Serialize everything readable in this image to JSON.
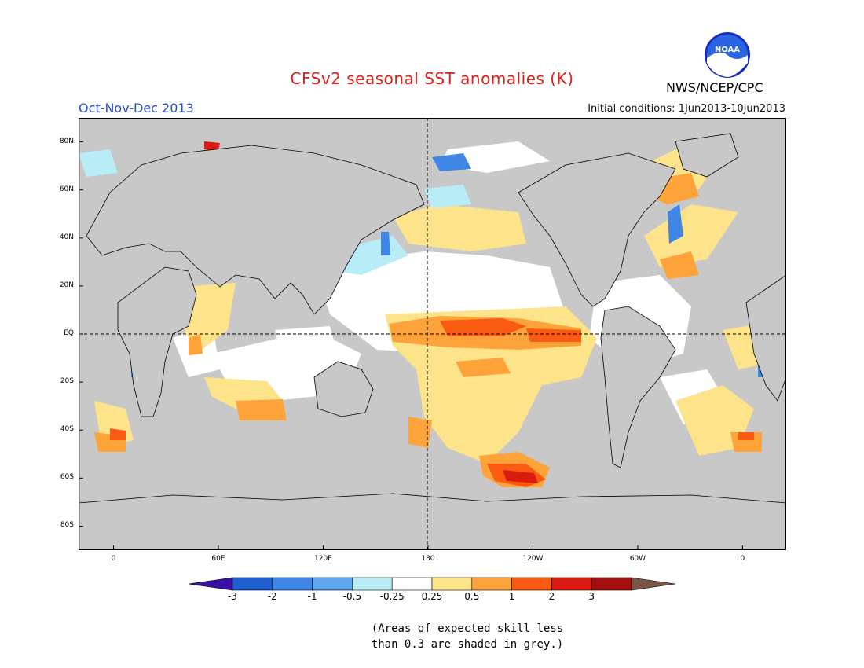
{
  "title": "CFSv2 seasonal SST anomalies (K)",
  "season": "Oct-Nov-Dec 2013",
  "initial_conditions": "Initial conditions: 1Jun2013-10Jun2013",
  "organization": "NWS/NCEP/CPC",
  "logo_text": "NOAA",
  "colors": {
    "title": "#e0201b",
    "season": "#2a4fd8",
    "land": "#c8c8c8",
    "ocean_neutral": "#ffffff"
  },
  "map": {
    "lat_labels": [
      "80N",
      "60N",
      "40N",
      "20N",
      "EQ",
      "20S",
      "40S",
      "60S",
      "80S"
    ],
    "lat_values": [
      80,
      60,
      40,
      20,
      0,
      -20,
      -40,
      -60,
      -80
    ],
    "lon_labels": [
      "0",
      "60E",
      "120E",
      "180",
      "120W",
      "60W",
      "0"
    ],
    "lon_values": [
      0,
      60,
      120,
      180,
      240,
      300,
      360
    ],
    "lon_range": [
      -20,
      385
    ],
    "lat_range": [
      -90,
      90
    ]
  },
  "colorbar": {
    "levels": [
      "-3",
      "-2",
      "-1",
      "-0.5",
      "-0.25",
      "0.25",
      "0.5",
      "1",
      "2",
      "3"
    ],
    "colors": [
      "#3b0fa3",
      "#1f5fd0",
      "#3f86e6",
      "#5fa8f0",
      "#b8ecf6",
      "#ffffff",
      "#fde38a",
      "#fda33a",
      "#fa5a12",
      "#d81c10",
      "#a50f0f",
      "#7a5548"
    ]
  },
  "note": {
    "line1": "(Areas of expected skill less",
    "line2": "than 0.3 are shaded in grey.)"
  }
}
